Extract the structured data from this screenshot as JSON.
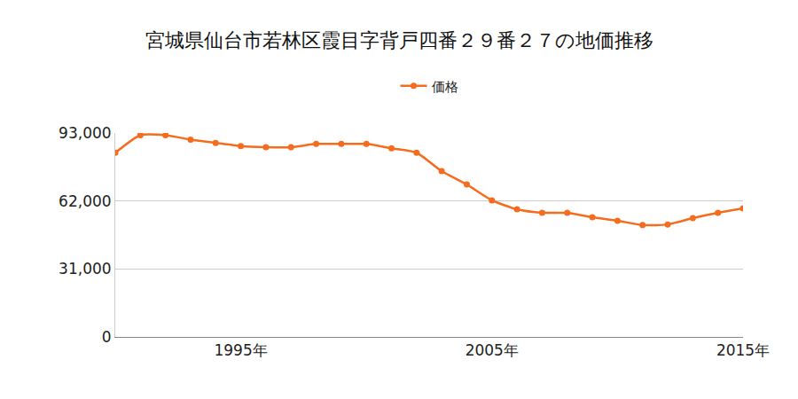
{
  "chart_data": {
    "type": "line",
    "title": "宮城県仙台市若林区霞目字背戸四番２９番２７の地価推移",
    "x": [
      1990,
      1991,
      1992,
      1993,
      1994,
      1995,
      1996,
      1997,
      1998,
      1999,
      2000,
      2001,
      2002,
      2003,
      2004,
      2005,
      2006,
      2007,
      2008,
      2009,
      2010,
      2011,
      2012,
      2013,
      2014,
      2015
    ],
    "series": [
      {
        "name": "価格",
        "color": "#f56c1e",
        "values": [
          84000,
          92000,
          92000,
          90000,
          88500,
          87000,
          86500,
          86500,
          88000,
          88000,
          88000,
          86000,
          84000,
          75600,
          69500,
          62300,
          58200,
          56600,
          56600,
          54600,
          53000,
          51000,
          51300,
          54200,
          56600,
          58600
        ]
      }
    ],
    "xlim": [
      1990,
      2015
    ],
    "xticks": [
      {
        "value": 1995,
        "label": "1995年"
      },
      {
        "value": 2005,
        "label": "2005年"
      },
      {
        "value": 2015,
        "label": "2015年"
      }
    ],
    "ylim": [
      0,
      93000
    ],
    "yticks": [
      0,
      {
        "value": 31000,
        "label": "31,000"
      },
      {
        "value": 62000,
        "label": "62,000"
      },
      {
        "value": 93000,
        "label": "93,000"
      }
    ],
    "grid": true,
    "legend": "top",
    "marker": "circle"
  }
}
